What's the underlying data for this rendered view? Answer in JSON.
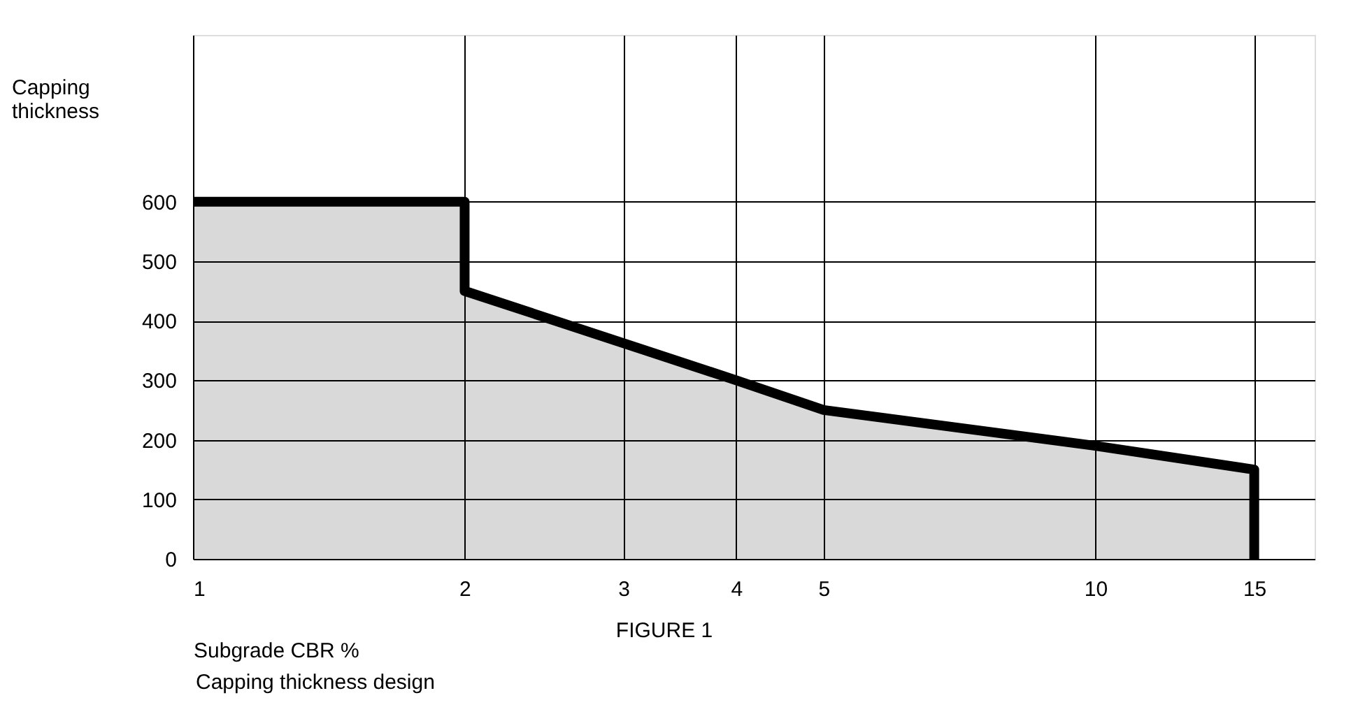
{
  "chart_data": {
    "type": "area",
    "xlabel": "Subgrade CBR %",
    "ylabel": "Capping thickness",
    "annotations": [
      "FIGURE 1",
      "Capping thickness design"
    ],
    "x": [
      1,
      2,
      2,
      4,
      5,
      10,
      15,
      15
    ],
    "series": [
      {
        "color": "#000000",
        "values": [
          600,
          600,
          450,
          300,
          250,
          190,
          150,
          0
        ]
      }
    ],
    "log": "x",
    "xlim": [
      1,
      17.5
    ],
    "xticks": [
      1,
      2,
      3,
      4,
      5,
      10,
      15
    ],
    "ylim": [
      0,
      880
    ],
    "yticks": [
      0,
      100,
      200,
      300,
      400,
      500,
      600
    ],
    "grid": true
  }
}
